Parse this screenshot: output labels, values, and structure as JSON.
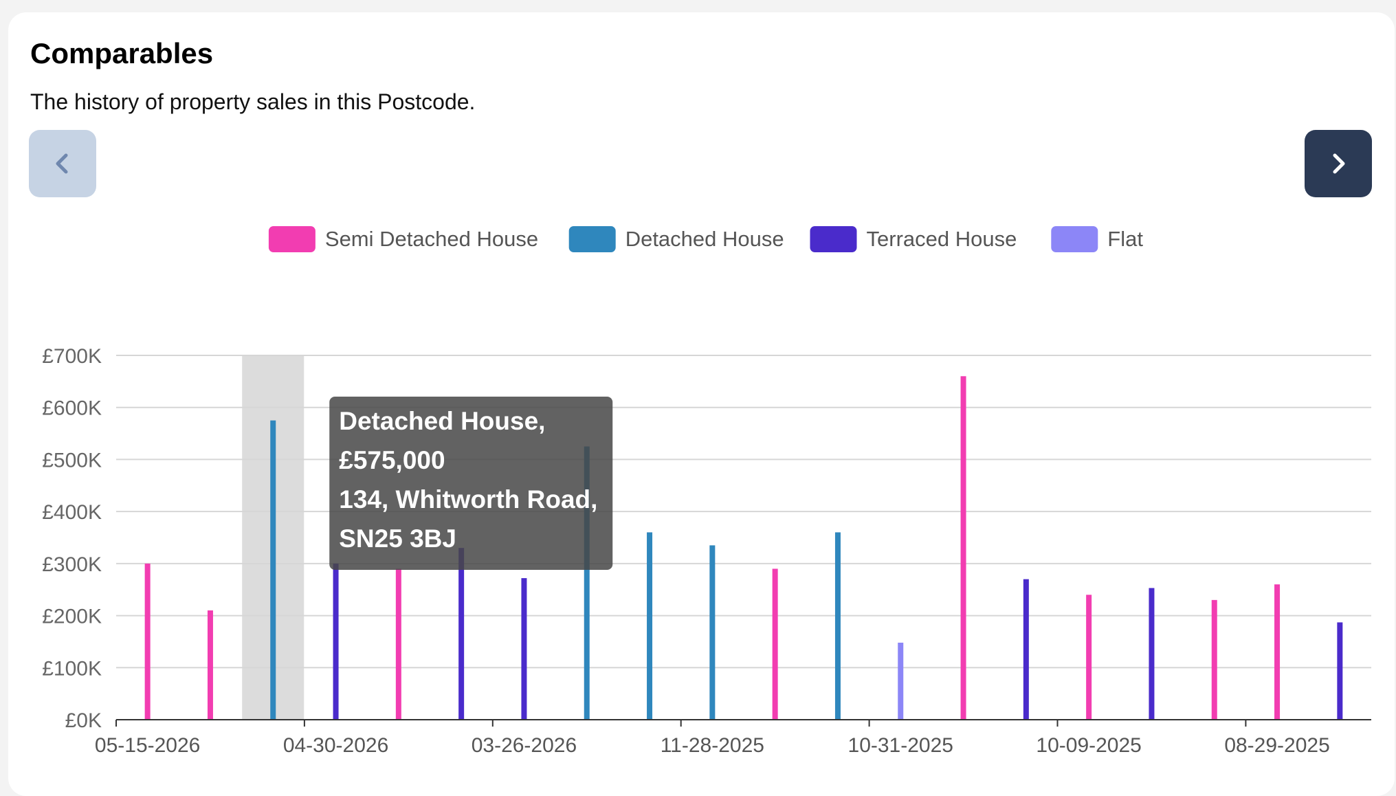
{
  "header": {
    "title": "Comparables",
    "subtitle": "The history of property sales in this Postcode."
  },
  "nav": {
    "prev_icon": "chevron-left-icon",
    "next_icon": "chevron-right-icon",
    "prev_color": "#c6d3e4",
    "next_color": "#2b3a55"
  },
  "chart_data": {
    "type": "bar",
    "ylim": [
      0,
      700000
    ],
    "y_ticks": [
      0,
      100000,
      200000,
      300000,
      400000,
      500000,
      600000,
      700000
    ],
    "y_tick_labels": [
      "£0K",
      "£100K",
      "£200K",
      "£300K",
      "£400K",
      "£500K",
      "£600K",
      "£700K"
    ],
    "x_tick_labels": [
      "05-15-2026",
      "04-30-2026",
      "03-26-2026",
      "11-28-2025",
      "10-31-2025",
      "10-09-2025",
      "08-29-2025"
    ],
    "grid": true,
    "legend_position": "top-center",
    "legend": [
      {
        "name": "Semi Detached House",
        "color": "#f23db1"
      },
      {
        "name": "Detached House",
        "color": "#2f87bd"
      },
      {
        "name": "Terraced House",
        "color": "#4a2bcb"
      },
      {
        "name": "Flat",
        "color": "#8c86f7"
      }
    ],
    "bars": [
      {
        "type": "Semi Detached House",
        "value": 300000
      },
      {
        "type": "Semi Detached House",
        "value": 210000
      },
      {
        "type": "Detached House",
        "value": 575000
      },
      {
        "type": "Terraced House",
        "value": 300000
      },
      {
        "type": "Semi Detached House",
        "value": 290000
      },
      {
        "type": "Terraced House",
        "value": 330000
      },
      {
        "type": "Terraced House",
        "value": 272000
      },
      {
        "type": "Detached House",
        "value": 525000
      },
      {
        "type": "Detached House",
        "value": 360000
      },
      {
        "type": "Detached House",
        "value": 335000
      },
      {
        "type": "Semi Detached House",
        "value": 290000
      },
      {
        "type": "Detached House",
        "value": 360000
      },
      {
        "type": "Flat",
        "value": 148000
      },
      {
        "type": "Semi Detached House",
        "value": 660000
      },
      {
        "type": "Terraced House",
        "value": 270000
      },
      {
        "type": "Semi Detached House",
        "value": 240000
      },
      {
        "type": "Terraced House",
        "value": 253000
      },
      {
        "type": "Semi Detached House",
        "value": 230000
      },
      {
        "type": "Semi Detached House",
        "value": 260000
      },
      {
        "type": "Terraced House",
        "value": 187000
      }
    ],
    "highlighted_index": 2,
    "tooltip": {
      "lines": [
        "Detached House,",
        "£575,000",
        "134, Whitworth Road,",
        "SN25 3BJ"
      ]
    }
  }
}
